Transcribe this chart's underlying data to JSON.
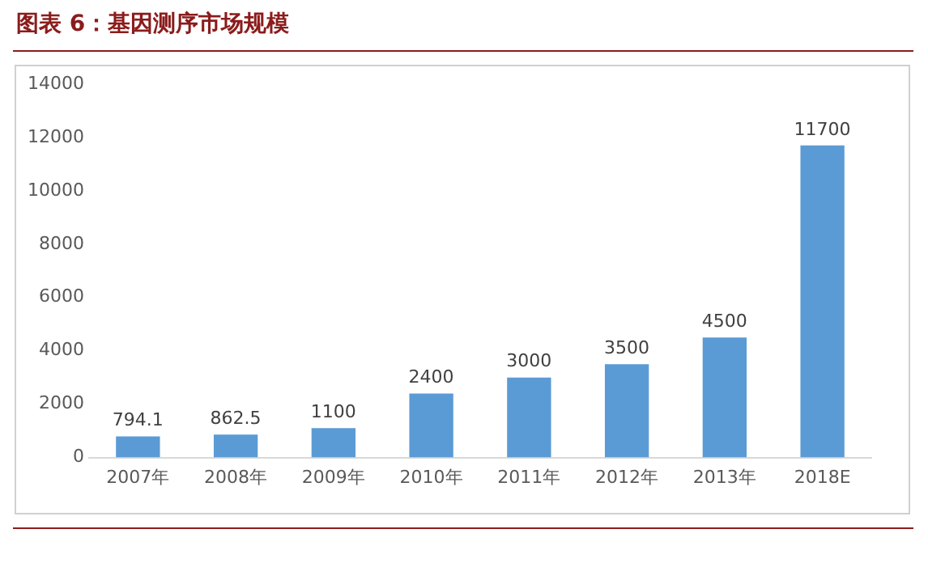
{
  "chart_data": {
    "type": "bar",
    "title": "图表 6：基因测序市场规模",
    "categories": [
      "2007年",
      "2008年",
      "2009年",
      "2010年",
      "2011年",
      "2012年",
      "2013年",
      "2018E"
    ],
    "values": [
      794.1,
      862.5,
      1100,
      2400,
      3000,
      3500,
      4500,
      11700
    ],
    "color": "#5b9bd5",
    "ylim": [
      0,
      14000
    ],
    "yticks": [
      0,
      2000,
      4000,
      6000,
      8000,
      10000,
      12000,
      14000
    ],
    "grid": false,
    "legend": false,
    "data_labels": true
  }
}
